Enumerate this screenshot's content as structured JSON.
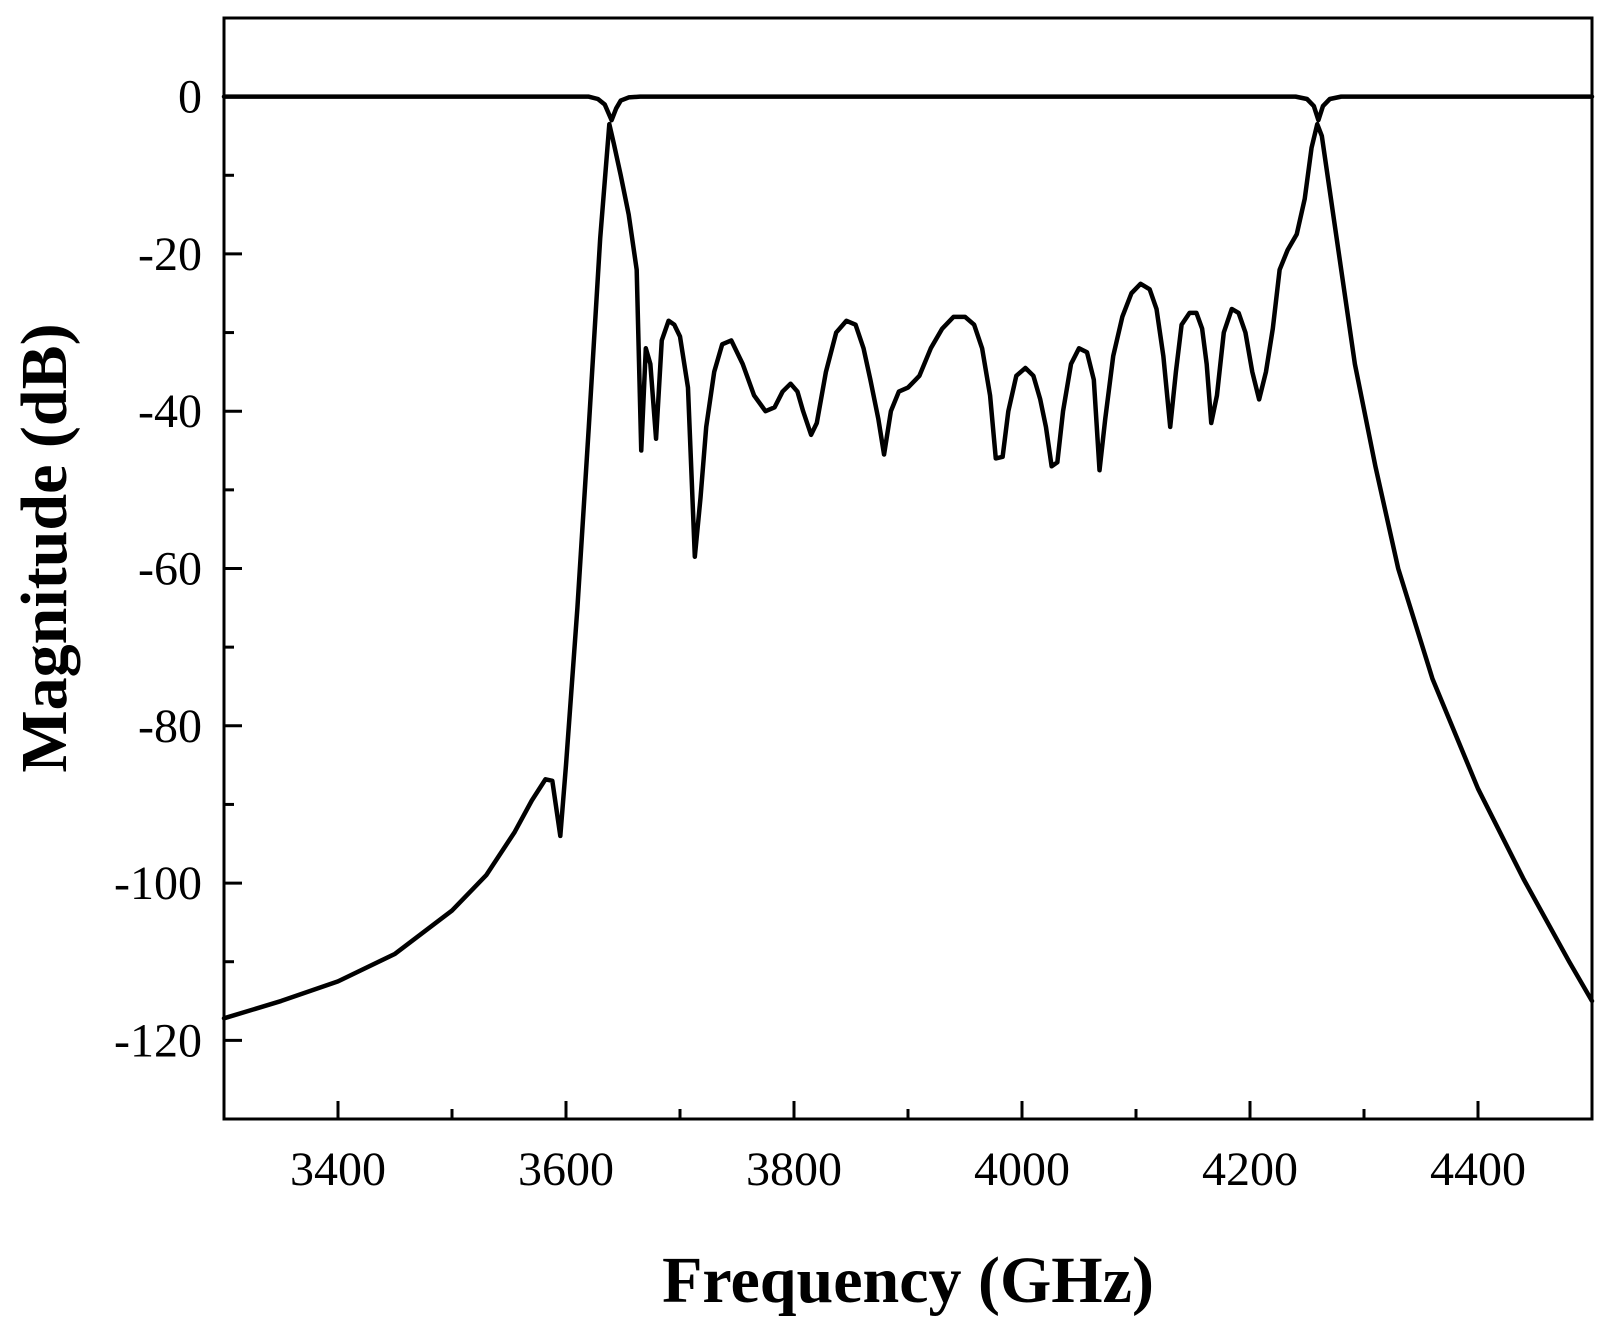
{
  "chart_data": {
    "type": "line",
    "title": "",
    "xlabel": "Frequency (GHz)",
    "ylabel": "Magnitude (dB)",
    "xlim": [
      3300,
      4500
    ],
    "ylim": [
      -130,
      10
    ],
    "x_ticks": [
      3400,
      3600,
      3800,
      4000,
      4200,
      4400
    ],
    "x_minor_ticks": [
      3500,
      3700,
      3900,
      4100,
      4300
    ],
    "y_ticks": [
      0,
      -20,
      -40,
      -60,
      -80,
      -100,
      -120
    ],
    "y_minor_ticks": [
      -10,
      -30,
      -50,
      -70,
      -90,
      -110
    ],
    "grid": false,
    "legend": "none",
    "series": [
      {
        "color": "#000000",
        "points": [
          [
            3300,
            0
          ],
          [
            3550,
            0
          ],
          [
            3620,
            0
          ],
          [
            3628,
            -0.3
          ],
          [
            3634,
            -1.0
          ],
          [
            3640,
            -3.0
          ],
          [
            3644,
            -1.5
          ],
          [
            3648,
            -0.5
          ],
          [
            3655,
            -0.1
          ],
          [
            3665,
            0
          ],
          [
            3800,
            0
          ],
          [
            4000,
            0
          ],
          [
            4200,
            0
          ],
          [
            4240,
            0
          ],
          [
            4250,
            -0.3
          ],
          [
            4256,
            -1.2
          ],
          [
            4260,
            -3.0
          ],
          [
            4264,
            -1.2
          ],
          [
            4270,
            -0.3
          ],
          [
            4280,
            0
          ],
          [
            4500,
            0
          ]
        ]
      },
      {
        "color": "#000000",
        "points": [
          [
            3300,
            -117.2
          ],
          [
            3350,
            -115.0
          ],
          [
            3400,
            -112.5
          ],
          [
            3450,
            -109.0
          ],
          [
            3500,
            -103.5
          ],
          [
            3530,
            -99.0
          ],
          [
            3555,
            -93.5
          ],
          [
            3570,
            -89.5
          ],
          [
            3582,
            -86.8
          ],
          [
            3588,
            -87.0
          ],
          [
            3595,
            -94.0
          ],
          [
            3600,
            -85.0
          ],
          [
            3610,
            -65.0
          ],
          [
            3620,
            -42.0
          ],
          [
            3630,
            -18.0
          ],
          [
            3638,
            -3.5
          ],
          [
            3642,
            -6.0
          ],
          [
            3648,
            -10.0
          ],
          [
            3655,
            -15.0
          ],
          [
            3662,
            -22.0
          ],
          [
            3666,
            -45.0
          ],
          [
            3670,
            -32.0
          ],
          [
            3674,
            -34.0
          ],
          [
            3679,
            -43.5
          ],
          [
            3684,
            -31.0
          ],
          [
            3690,
            -28.5
          ],
          [
            3695,
            -29.0
          ],
          [
            3700,
            -30.5
          ],
          [
            3707,
            -37.0
          ],
          [
            3713,
            -58.5
          ],
          [
            3718,
            -51.0
          ],
          [
            3723,
            -42.0
          ],
          [
            3730,
            -35.0
          ],
          [
            3737,
            -31.5
          ],
          [
            3745,
            -31.0
          ],
          [
            3755,
            -34.0
          ],
          [
            3765,
            -38.0
          ],
          [
            3775,
            -40.0
          ],
          [
            3783,
            -39.5
          ],
          [
            3790,
            -37.5
          ],
          [
            3797,
            -36.5
          ],
          [
            3803,
            -37.5
          ],
          [
            3808,
            -40.0
          ],
          [
            3815,
            -43.0
          ],
          [
            3820,
            -41.5
          ],
          [
            3828,
            -35.0
          ],
          [
            3837,
            -30.0
          ],
          [
            3846,
            -28.5
          ],
          [
            3854,
            -29.0
          ],
          [
            3861,
            -32.0
          ],
          [
            3867,
            -36.0
          ],
          [
            3874,
            -41.0
          ],
          [
            3879,
            -45.5
          ],
          [
            3885,
            -40.0
          ],
          [
            3892,
            -37.5
          ],
          [
            3900,
            -37.0
          ],
          [
            3910,
            -35.5
          ],
          [
            3920,
            -32.0
          ],
          [
            3930,
            -29.5
          ],
          [
            3940,
            -28.0
          ],
          [
            3950,
            -28.0
          ],
          [
            3958,
            -29.0
          ],
          [
            3965,
            -32.0
          ],
          [
            3972,
            -38.0
          ],
          [
            3977,
            -46.0
          ],
          [
            3983,
            -45.8
          ],
          [
            3988,
            -40.0
          ],
          [
            3995,
            -35.5
          ],
          [
            4003,
            -34.5
          ],
          [
            4010,
            -35.5
          ],
          [
            4016,
            -38.5
          ],
          [
            4021,
            -42.0
          ],
          [
            4026,
            -47.0
          ],
          [
            4031,
            -46.5
          ],
          [
            4036,
            -40.0
          ],
          [
            4043,
            -34.0
          ],
          [
            4050,
            -32.0
          ],
          [
            4057,
            -32.5
          ],
          [
            4063,
            -36.0
          ],
          [
            4068,
            -47.5
          ],
          [
            4073,
            -41.0
          ],
          [
            4080,
            -33.0
          ],
          [
            4088,
            -28.0
          ],
          [
            4096,
            -25.0
          ],
          [
            4104,
            -23.8
          ],
          [
            4112,
            -24.5
          ],
          [
            4118,
            -27.0
          ],
          [
            4124,
            -33.0
          ],
          [
            4130,
            -42.0
          ],
          [
            4135,
            -35.0
          ],
          [
            4140,
            -29.0
          ],
          [
            4147,
            -27.5
          ],
          [
            4153,
            -27.5
          ],
          [
            4158,
            -29.5
          ],
          [
            4162,
            -34.0
          ],
          [
            4166,
            -41.5
          ],
          [
            4171,
            -38.0
          ],
          [
            4177,
            -30.0
          ],
          [
            4184,
            -27.0
          ],
          [
            4190,
            -27.5
          ],
          [
            4196,
            -30.0
          ],
          [
            4202,
            -35.0
          ],
          [
            4208,
            -38.5
          ],
          [
            4214,
            -35.0
          ],
          [
            4220,
            -29.5
          ],
          [
            4226,
            -22.0
          ],
          [
            4233,
            -19.5
          ],
          [
            4241,
            -17.5
          ],
          [
            4248,
            -13.0
          ],
          [
            4254,
            -6.5
          ],
          [
            4259,
            -3.5
          ],
          [
            4263,
            -5.0
          ],
          [
            4270,
            -12.0
          ],
          [
            4280,
            -22.0
          ],
          [
            4292,
            -34.0
          ],
          [
            4310,
            -47.0
          ],
          [
            4330,
            -60.0
          ],
          [
            4360,
            -74.0
          ],
          [
            4400,
            -88.0
          ],
          [
            4440,
            -99.5
          ],
          [
            4480,
            -110.0
          ],
          [
            4500,
            -115.0
          ]
        ]
      }
    ]
  }
}
